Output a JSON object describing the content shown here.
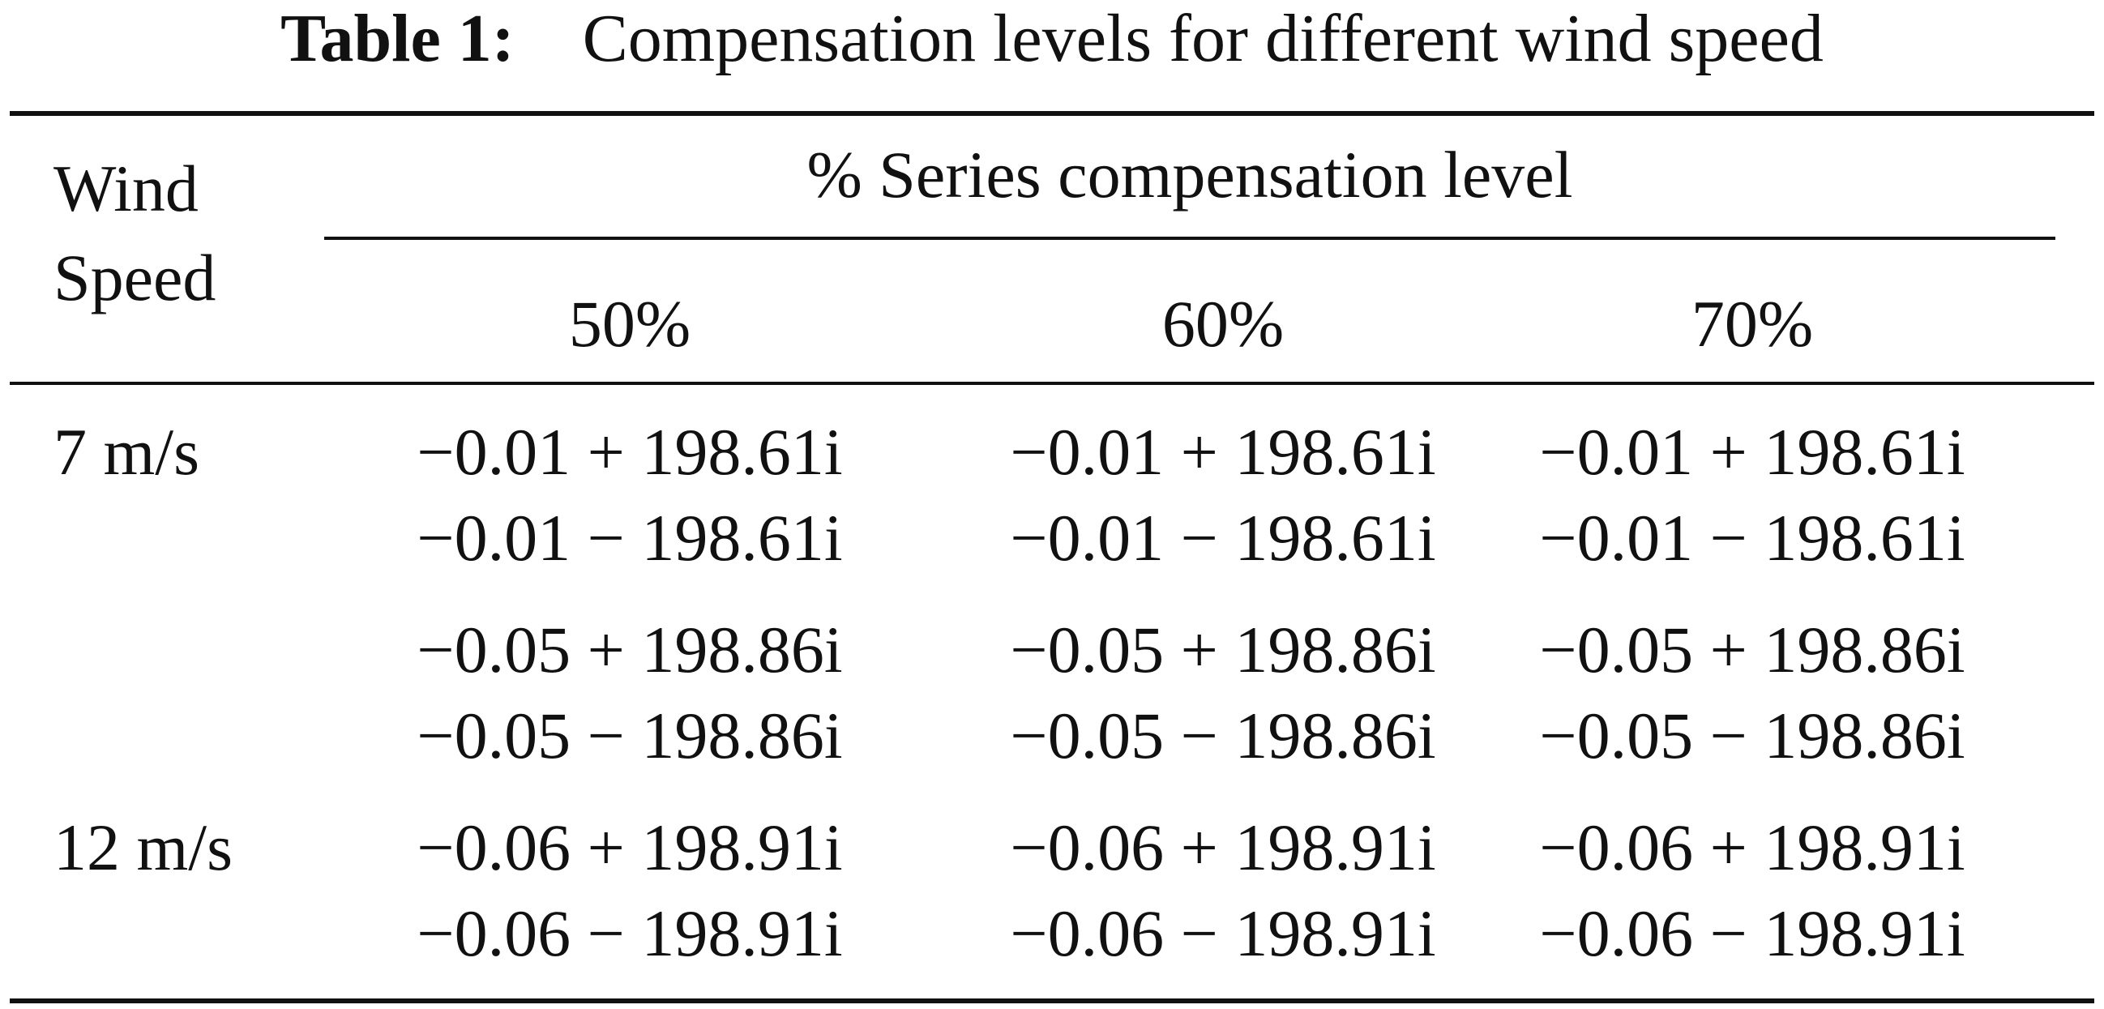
{
  "caption": {
    "label": "Table 1:",
    "text": "Compensation levels for different wind speed"
  },
  "table": {
    "stub_header": "Wind Speed",
    "group_header": "% Series compensation level",
    "columns": [
      "50%",
      "60%",
      "70%"
    ],
    "rows": [
      {
        "label": "7 m/s",
        "values": [
          "−0.01 + 198.61i",
          "−0.01 + 198.61i",
          "−0.01 + 198.61i"
        ]
      },
      {
        "label": "",
        "values": [
          "−0.01 − 198.61i",
          "−0.01 − 198.61i",
          "−0.01 − 198.61i"
        ]
      },
      {
        "label": "",
        "values": [
          "−0.05 + 198.86i",
          "−0.05 + 198.86i",
          "−0.05 + 198.86i"
        ]
      },
      {
        "label": "",
        "values": [
          "−0.05 − 198.86i",
          "−0.05 − 198.86i",
          "−0.05 − 198.86i"
        ]
      },
      {
        "label": "12 m/s",
        "values": [
          "−0.06 + 198.91i",
          "−0.06 + 198.91i",
          "−0.06 + 198.91i"
        ]
      },
      {
        "label": "",
        "values": [
          "−0.06 − 198.91i",
          "−0.06 − 198.91i",
          "−0.06 − 198.91i"
        ]
      }
    ]
  }
}
